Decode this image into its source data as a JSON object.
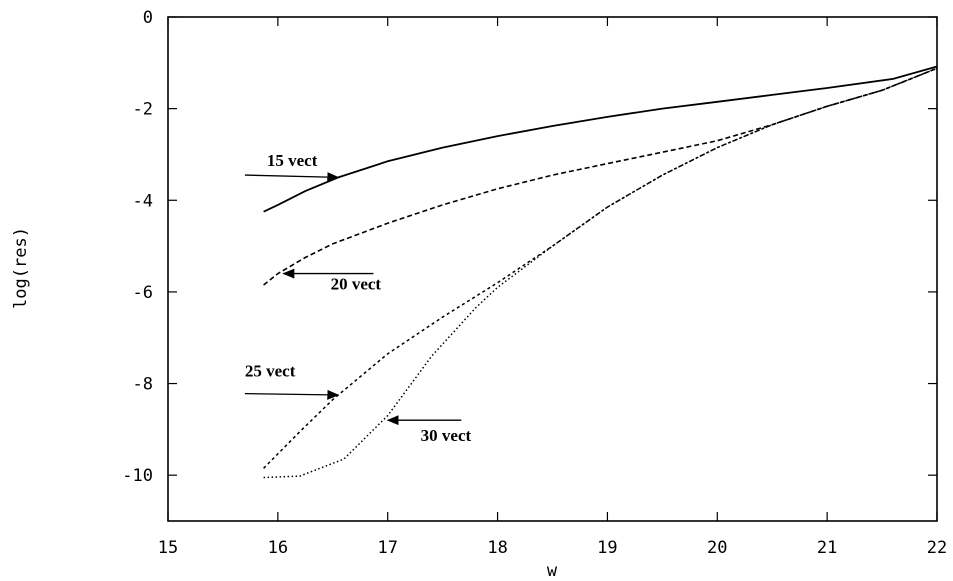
{
  "chart_data": {
    "type": "line",
    "title": "",
    "xlabel": "w",
    "ylabel": "log(res)",
    "xlim": [
      15,
      22
    ],
    "ylim": [
      -11,
      0
    ],
    "xticks": [
      15,
      16,
      17,
      18,
      19,
      20,
      21,
      22
    ],
    "yticks": [
      0,
      -2,
      -4,
      -6,
      -8,
      -10
    ],
    "xtick_labels": [
      "15",
      "16",
      "17",
      "18",
      "19",
      "20",
      "21",
      "22"
    ],
    "ytick_labels": [
      "0",
      "-2",
      "-4",
      "-6",
      "-8",
      "-10"
    ],
    "grid": false,
    "legend": "none",
    "series": [
      {
        "name": "15 vect",
        "style": "solid",
        "x": [
          15.87,
          16.0,
          16.25,
          16.55,
          17.0,
          17.5,
          18.0,
          18.5,
          19.0,
          19.5,
          20.0,
          20.5,
          21.0,
          21.6,
          22.0
        ],
        "y": [
          -4.25,
          -4.1,
          -3.8,
          -3.5,
          -3.15,
          -2.85,
          -2.6,
          -2.38,
          -2.18,
          -2.0,
          -1.85,
          -1.7,
          -1.55,
          -1.35,
          -1.08
        ]
      },
      {
        "name": "20 vect",
        "style": "dashed",
        "x": [
          15.87,
          16.0,
          16.25,
          16.5,
          17.0,
          17.5,
          18.0,
          18.5,
          19.0,
          19.5,
          20.0,
          20.5,
          21.0,
          21.5,
          22.0
        ],
        "y": [
          -5.85,
          -5.6,
          -5.25,
          -4.95,
          -4.5,
          -4.1,
          -3.75,
          -3.45,
          -3.2,
          -2.95,
          -2.7,
          -2.35,
          -1.95,
          -1.6,
          -1.12
        ]
      },
      {
        "name": "25 vect",
        "style": "short-dash",
        "x": [
          15.87,
          16.2,
          16.5,
          17.0,
          17.5,
          18.0,
          18.5,
          19.0,
          19.5,
          20.0,
          20.5,
          21.0,
          21.5,
          22.0
        ],
        "y": [
          -9.85,
          -9.05,
          -8.35,
          -7.35,
          -6.55,
          -5.8,
          -5.0,
          -4.15,
          -3.45,
          -2.85,
          -2.35,
          -1.95,
          -1.6,
          -1.12
        ]
      },
      {
        "name": "30 vect",
        "style": "dotted",
        "x": [
          15.87,
          16.2,
          16.6,
          17.0,
          17.4,
          17.8,
          18.0,
          18.5,
          19.0,
          19.5,
          20.0,
          20.5,
          21.0,
          21.5,
          22.0
        ],
        "y": [
          -10.05,
          -10.02,
          -9.65,
          -8.7,
          -7.4,
          -6.35,
          -5.9,
          -5.0,
          -4.15,
          -3.45,
          -2.85,
          -2.35,
          -1.95,
          -1.6,
          -1.12
        ]
      }
    ],
    "annotations": [
      {
        "text": "15 vect",
        "target": [
          16.55,
          -3.5
        ],
        "arrow_from": [
          15.7,
          -3.45
        ],
        "text_at": [
          15.9,
          -3.25
        ]
      },
      {
        "text": "20 vect",
        "target": [
          16.05,
          -5.6
        ],
        "arrow_from": [
          16.87,
          -5.6
        ],
        "text_at": [
          16.48,
          -5.95
        ]
      },
      {
        "text": "25 vect",
        "target": [
          16.55,
          -8.25
        ],
        "arrow_from": [
          15.7,
          -8.22
        ],
        "text_at": [
          15.7,
          -7.85
        ]
      },
      {
        "text": "30 vect",
        "target": [
          17.0,
          -8.8
        ],
        "arrow_from": [
          17.67,
          -8.8
        ],
        "text_at": [
          17.3,
          -9.25
        ]
      }
    ]
  }
}
